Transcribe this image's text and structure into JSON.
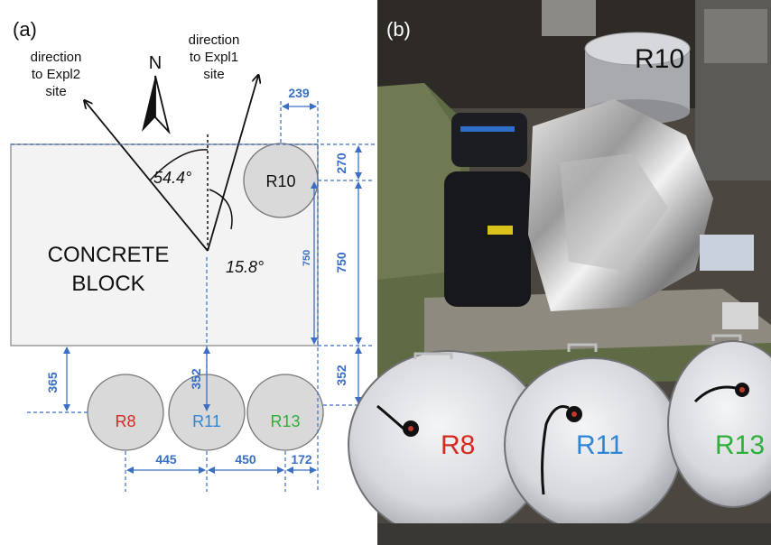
{
  "panel_a": {
    "label": "(a)",
    "north": "N",
    "expl2": [
      "direction",
      "to Expl2",
      "site"
    ],
    "expl1": [
      "direction",
      "to Expl1",
      "site"
    ],
    "angle1": "54.4°",
    "angle2": "15.8°",
    "block": [
      "CONCRETE",
      "BLOCK"
    ],
    "sensors": {
      "r10": "R10",
      "r8": "R8",
      "r11": "R11",
      "r13": "R13"
    },
    "dims": {
      "d239": "239",
      "d270": "270",
      "d750_outer": "750",
      "d750_inner": "750",
      "d352_right": "352",
      "d352_mid": "352",
      "d365": "365",
      "d445": "445",
      "d450": "450",
      "d172": "172"
    }
  },
  "panel_b": {
    "label": "(b)",
    "sensors": {
      "r10": "R10",
      "r8": "R8",
      "r11": "R11",
      "r13": "R13"
    }
  },
  "colors": {
    "dimension_blue": "#3a6fc4",
    "r8": "#d42a1f",
    "r11": "#2f86d6",
    "r13": "#2fae3c",
    "block_fill": "#f3f3f3",
    "sensor_fill": "#d9d9d9"
  }
}
